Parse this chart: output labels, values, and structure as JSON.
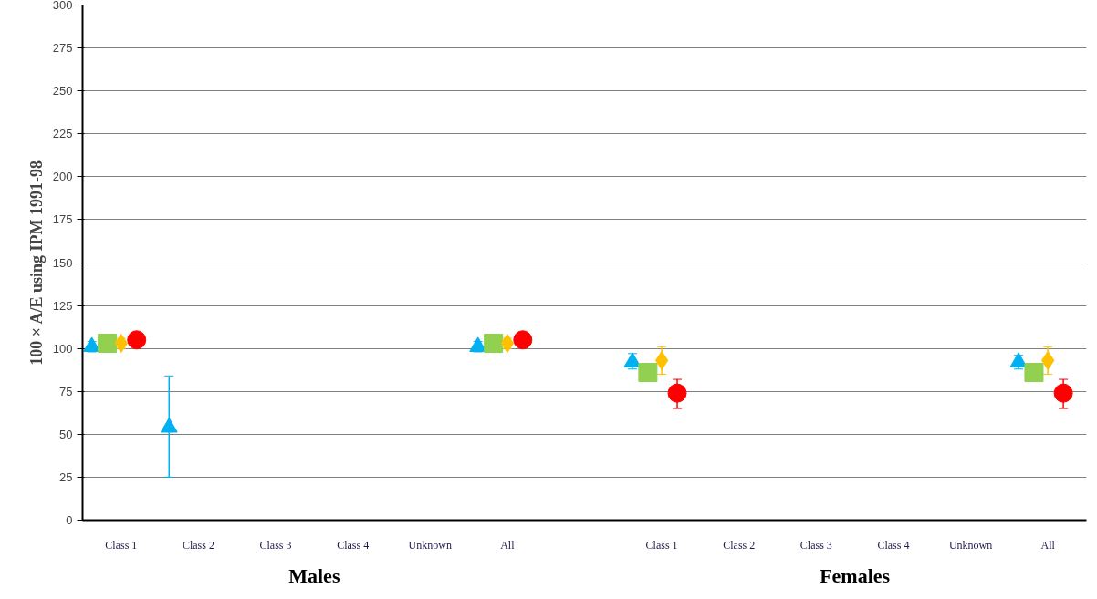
{
  "chart_data": {
    "type": "scatter",
    "ylabel": "100 × A/E using IPM 1991-98",
    "categories": [
      "Class 1",
      "Class 2",
      "Class 3",
      "Class 4",
      "Unknown",
      "All",
      null,
      "Class 1",
      "Class 2",
      "Class 3",
      "Class 4",
      "Unknown",
      "All"
    ],
    "series": [
      {
        "color": "#00b0f0",
        "marker": "triangle",
        "values": [
          101,
          54,
          null,
          null,
          null,
          101,
          null,
          92,
          null,
          null,
          null,
          null,
          92
        ],
        "errors": [
          3,
          [
            25,
            84
          ],
          null,
          null,
          null,
          3,
          null,
          [
            88,
            97
          ],
          null,
          null,
          null,
          null,
          [
            88,
            96
          ]
        ]
      },
      {
        "color": "#92d050",
        "marker": "square",
        "values": [
          103,
          null,
          null,
          null,
          null,
          103,
          null,
          86,
          null,
          null,
          null,
          null,
          86
        ],
        "errors": [
          3,
          null,
          null,
          null,
          null,
          3,
          null,
          [
            81,
            91
          ],
          null,
          null,
          null,
          null,
          [
            81,
            91
          ]
        ]
      },
      {
        "color": "#ffc000",
        "marker": "diamond",
        "values": [
          103,
          null,
          null,
          null,
          null,
          103,
          null,
          93,
          null,
          null,
          null,
          null,
          93
        ],
        "errors": [
          3,
          null,
          null,
          null,
          null,
          3,
          null,
          [
            85,
            101
          ],
          null,
          null,
          null,
          null,
          [
            85,
            101
          ]
        ]
      },
      {
        "color": "#ff0000",
        "marker": "circle",
        "values": [
          105,
          null,
          null,
          null,
          null,
          105,
          null,
          74,
          null,
          null,
          null,
          null,
          74
        ],
        "errors": [
          4,
          null,
          null,
          null,
          null,
          4,
          null,
          [
            65,
            82
          ],
          null,
          null,
          null,
          null,
          [
            65,
            82
          ]
        ]
      }
    ],
    "ylim": [
      0,
      300
    ],
    "yticks": [
      0,
      25,
      50,
      75,
      100,
      125,
      150,
      175,
      200,
      225,
      250,
      275,
      300
    ],
    "grid": "y",
    "annotations": [
      "Males",
      "Females"
    ]
  }
}
